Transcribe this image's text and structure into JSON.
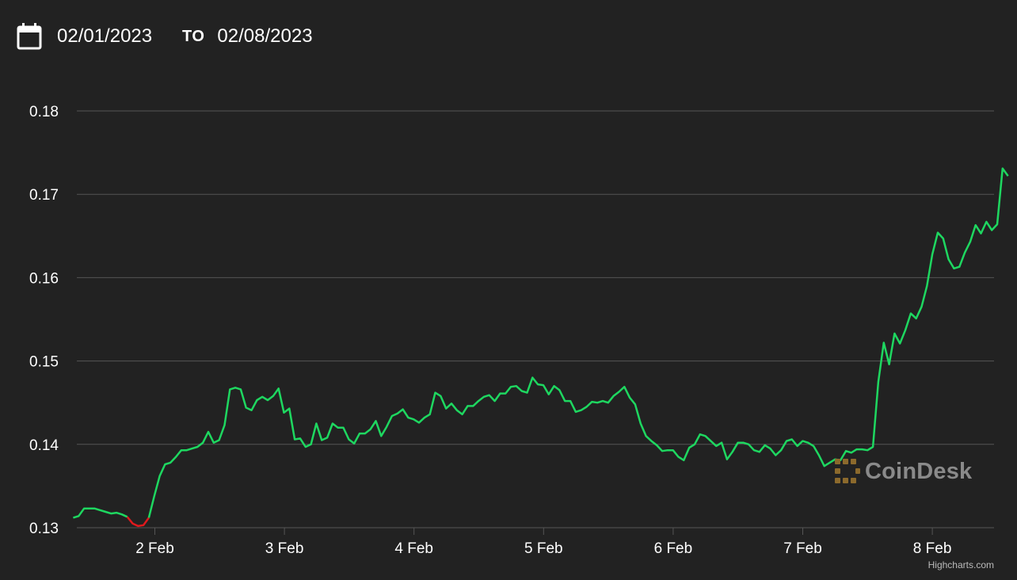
{
  "header": {
    "from_date": "02/01/2023",
    "to_label": "TO",
    "to_date": "02/08/2023"
  },
  "watermark": {
    "text": "CoinDesk",
    "icon": "coindesk-logo-icon",
    "icon_color": "#8c6a2c"
  },
  "credits": "Highcharts.com",
  "colors": {
    "background": "#222222",
    "grid": "#555555",
    "up_line": "#1ed760",
    "down_line": "#e0191d",
    "text": "#ffffff"
  },
  "chart_data": {
    "type": "line",
    "title": "",
    "xlabel": "",
    "ylabel": "",
    "ylim": [
      0.13,
      0.18
    ],
    "y_ticks": [
      "0.13",
      "0.14",
      "0.15",
      "0.16",
      "0.17",
      "0.18"
    ],
    "x_ticks": [
      "2 Feb",
      "3 Feb",
      "4 Feb",
      "5 Feb",
      "6 Feb",
      "7 Feb",
      "8 Feb"
    ],
    "grid": true,
    "legend": "none",
    "x_unit": "days",
    "x_start_day": 1.37,
    "x_step_days": 0.0417,
    "down_segment_index_range": [
      10,
      14
    ],
    "values": [
      0.1312,
      0.1314,
      0.1323,
      0.1323,
      0.1323,
      0.1321,
      0.1319,
      0.1317,
      0.1318,
      0.1316,
      0.1313,
      0.1305,
      0.1302,
      0.1303,
      0.1312,
      0.1338,
      0.1362,
      0.1376,
      0.1378,
      0.1385,
      0.1393,
      0.1393,
      0.1395,
      0.1397,
      0.1402,
      0.1415,
      0.1402,
      0.1405,
      0.1423,
      0.1466,
      0.1468,
      0.1466,
      0.1444,
      0.1441,
      0.1453,
      0.1457,
      0.1453,
      0.1458,
      0.1467,
      0.1438,
      0.1443,
      0.1406,
      0.1407,
      0.1397,
      0.14,
      0.1425,
      0.1405,
      0.1408,
      0.1425,
      0.142,
      0.142,
      0.1406,
      0.1401,
      0.1413,
      0.1413,
      0.1418,
      0.1428,
      0.141,
      0.1421,
      0.1434,
      0.1437,
      0.1442,
      0.1432,
      0.143,
      0.1426,
      0.1432,
      0.1436,
      0.1462,
      0.1458,
      0.1443,
      0.1449,
      0.1441,
      0.1436,
      0.1446,
      0.1446,
      0.1452,
      0.1457,
      0.1459,
      0.1452,
      0.1461,
      0.1461,
      0.1469,
      0.147,
      0.1464,
      0.1462,
      0.148,
      0.1472,
      0.1471,
      0.146,
      0.147,
      0.1465,
      0.1452,
      0.1452,
      0.1439,
      0.1441,
      0.1445,
      0.1451,
      0.145,
      0.1452,
      0.145,
      0.1458,
      0.1463,
      0.1469,
      0.1456,
      0.1448,
      0.1425,
      0.141,
      0.1404,
      0.1399,
      0.1392,
      0.1393,
      0.1393,
      0.1385,
      0.1381,
      0.1396,
      0.14,
      0.1412,
      0.141,
      0.1404,
      0.1398,
      0.1402,
      0.1382,
      0.1391,
      0.1402,
      0.1402,
      0.14,
      0.1393,
      0.1391,
      0.1399,
      0.1395,
      0.1387,
      0.1393,
      0.1404,
      0.1406,
      0.1398,
      0.1404,
      0.1402,
      0.1398,
      0.1387,
      0.1374,
      0.1378,
      0.1382,
      0.1381,
      0.1392,
      0.139,
      0.1394,
      0.1394,
      0.1393,
      0.1397,
      0.1475,
      0.1522,
      0.1496,
      0.1533,
      0.1521,
      0.1537,
      0.1557,
      0.1551,
      0.1565,
      0.159,
      0.1628,
      0.1654,
      0.1647,
      0.1622,
      0.1611,
      0.1613,
      0.163,
      0.1643,
      0.1663,
      0.1653,
      0.1667,
      0.1657,
      0.1664,
      0.1731,
      0.1722
    ]
  }
}
